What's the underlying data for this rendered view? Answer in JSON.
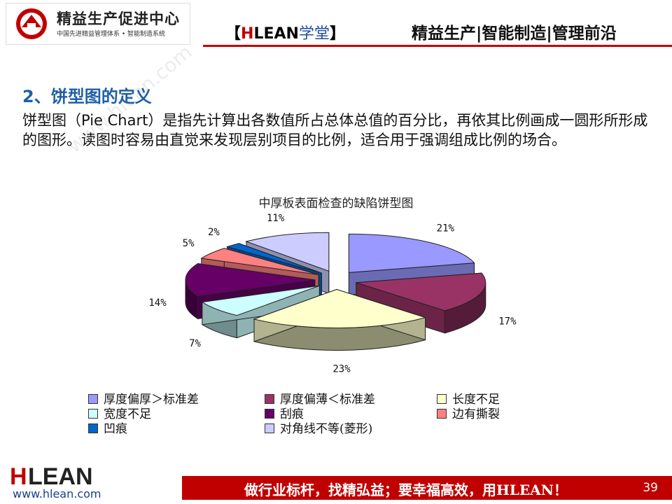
{
  "header": {
    "logo_name": "精益生产促进中心",
    "logo_sub": "中国先进精益管理体系 • 智能制造系统",
    "brand_open": "【",
    "brand_h": "H",
    "brand_lean": "LEAN",
    "brand_tail": "学堂",
    "brand_close": "】",
    "slogan": "精益生产|智能制造|管理前沿"
  },
  "content": {
    "section_title": "2、饼型图的定义",
    "paragraph": "饼型图（Pie Chart）是指先计算出各数值所占总体总值的百分比，再依其比例画成一圆形所形成的图形。读图时容易由直觉来发现层别项目的比例，适合用于强调组成比例的场合。",
    "watermark": "www.hlean.com"
  },
  "chart_data": {
    "type": "pie",
    "title": "中厚板表面检查的缺陷饼型图",
    "legend_position": "bottom",
    "slices": [
      {
        "name": "厚度偏厚＞标准差",
        "value": 21,
        "label": "21%",
        "color": "#9999ff"
      },
      {
        "name": "厚度偏薄＜标准差",
        "value": 17,
        "label": "17%",
        "color": "#993366"
      },
      {
        "name": "长度不足",
        "value": 23,
        "label": "23%",
        "color": "#ffffcc"
      },
      {
        "name": "宽度不足",
        "value": 7,
        "label": "7%",
        "color": "#ccffff"
      },
      {
        "name": "刮痕",
        "value": 14,
        "label": "14%",
        "color": "#660066"
      },
      {
        "name": "边有撕裂",
        "value": 5,
        "label": "5%",
        "color": "#ff8080"
      },
      {
        "name": "凹痕",
        "value": 2,
        "label": "2%",
        "color": "#0066cc"
      },
      {
        "name": "对角线不等(菱形)",
        "value": 11,
        "label": "11%",
        "color": "#ccccff"
      }
    ]
  },
  "footer": {
    "logo_text": "HLEAN",
    "url": "www.hlean.com",
    "slogan": "做行业标杆，找精弘益；要幸福高效，用HLEAN！",
    "page_number": "39"
  }
}
